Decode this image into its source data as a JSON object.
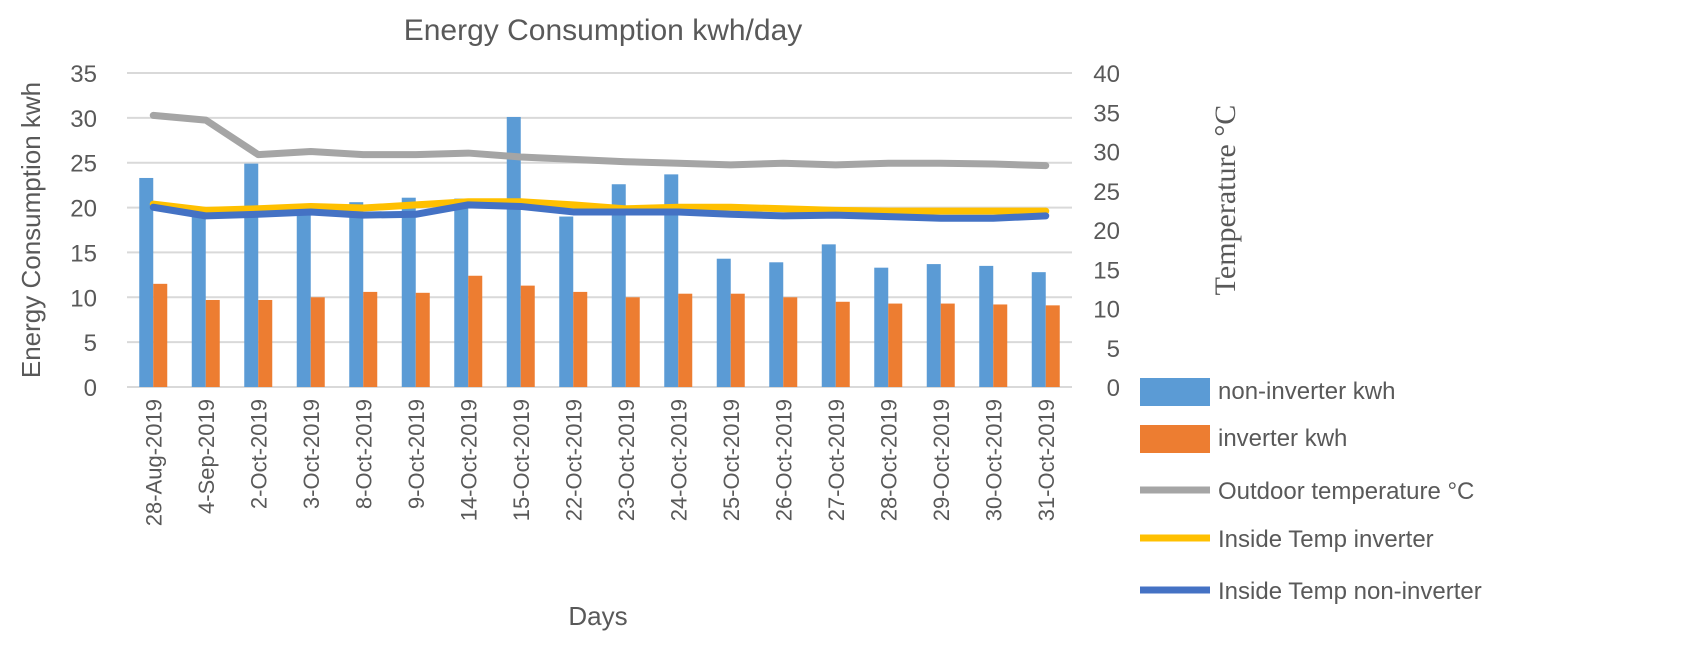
{
  "chart_data": {
    "type": "bar",
    "title": "Energy Consumption kwh/day",
    "xlabel": "Days",
    "ylabel": "Energy Consumption kwh",
    "y2label": "Temperature °C",
    "ylim": [
      0,
      35
    ],
    "yticks": [
      0,
      5,
      10,
      15,
      20,
      25,
      30,
      35
    ],
    "y2lim": [
      0,
      40
    ],
    "y2ticks": [
      0,
      5,
      10,
      15,
      20,
      25,
      30,
      35,
      40
    ],
    "grid": true,
    "legend": "right",
    "categories": [
      "28-Aug-2019",
      "4-Sep-2019",
      "2-Oct-2019",
      "3-Oct-2019",
      "8-Oct-2019",
      "9-Oct-2019",
      "14-Oct-2019",
      "15-Oct-2019",
      "22-Oct-2019",
      "23-Oct-2019",
      "24-Oct-2019",
      "25-Oct-2019",
      "26-Oct-2019",
      "27-Oct-2019",
      "28-Oct-2019",
      "29-Oct-2019",
      "30-Oct-2019",
      "31-Oct-2019"
    ],
    "series": [
      {
        "name": "non-inverter kwh",
        "type": "bar",
        "axis": "left",
        "color": "#5b9bd5",
        "values": [
          23.3,
          19.2,
          24.9,
          19.5,
          20.6,
          21.1,
          21.0,
          30.1,
          19.0,
          22.6,
          23.7,
          14.3,
          13.9,
          15.9,
          13.3,
          13.7,
          13.5,
          12.8
        ]
      },
      {
        "name": "inverter kwh",
        "type": "bar",
        "axis": "left",
        "color": "#ed7d31",
        "values": [
          11.5,
          9.7,
          9.7,
          10.0,
          10.6,
          10.5,
          12.4,
          11.3,
          10.6,
          10.0,
          10.4,
          10.4,
          10.0,
          9.5,
          9.3,
          9.3,
          9.2,
          9.1
        ]
      },
      {
        "name": "Outdoor temperature °C",
        "type": "line",
        "axis": "right",
        "color": "#a5a5a5",
        "values": [
          34.6,
          34.0,
          29.6,
          30.0,
          29.6,
          29.6,
          29.8,
          29.3,
          29.0,
          28.7,
          28.5,
          28.3,
          28.5,
          28.3,
          28.5,
          28.5,
          28.4,
          28.2
        ]
      },
      {
        "name": "Inside Temp inverter",
        "type": "line",
        "axis": "right",
        "color": "#ffc000",
        "values": [
          23.3,
          22.5,
          22.7,
          23.0,
          22.8,
          23.2,
          23.6,
          23.6,
          23.2,
          22.7,
          22.9,
          22.9,
          22.7,
          22.5,
          22.4,
          22.4,
          22.4,
          22.4
        ]
      },
      {
        "name": "Inside Temp non-inverter",
        "type": "line",
        "axis": "right",
        "color": "#4472c4",
        "values": [
          22.9,
          21.8,
          22.0,
          22.3,
          21.9,
          22.0,
          23.2,
          23.0,
          22.3,
          22.3,
          22.3,
          22.0,
          21.8,
          21.9,
          21.7,
          21.5,
          21.5,
          21.8
        ]
      }
    ]
  }
}
